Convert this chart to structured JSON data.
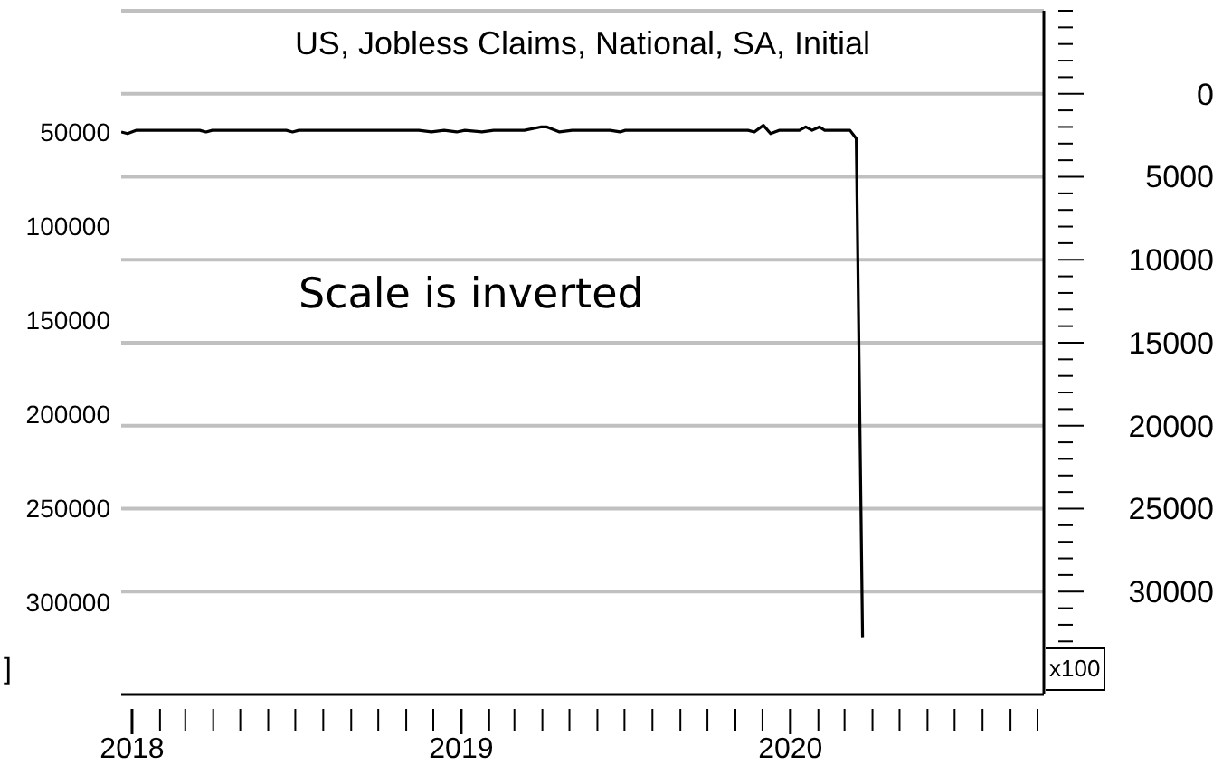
{
  "chart_data": {
    "type": "line",
    "title": "US, Jobless Claims, National, SA, Initial",
    "y2label": "x100",
    "annotations": [
      "Scale is inverted",
      "]"
    ],
    "x": [
      "2017-12-20",
      "2017-12-27",
      "2018-01-06",
      "2018-01-13",
      "2018-03-17",
      "2018-03-24",
      "2018-03-31",
      "2018-06-21",
      "2018-06-28",
      "2018-07-05",
      "2018-11-15",
      "2018-11-29",
      "2018-12-13",
      "2018-12-27",
      "2019-01-05",
      "2019-01-24",
      "2019-02-06",
      "2019-03-12",
      "2019-03-30",
      "2019-04-06",
      "2019-04-20",
      "2019-05-04",
      "2019-06-15",
      "2019-06-26",
      "2019-07-02",
      "2019-11-15",
      "2019-11-22",
      "2019-12-02",
      "2019-12-10",
      "2019-12-20",
      "2020-01-11",
      "2020-01-18",
      "2020-01-25",
      "2020-02-02",
      "2020-02-08",
      "2020-03-07",
      "2020-03-14",
      "2020-03-21"
    ],
    "series": [
      {
        "color": "#000000",
        "axis": "y2",
        "values": [
          2300,
          2400,
          2200,
          2200,
          2200,
          2300,
          2200,
          2200,
          2300,
          2200,
          2200,
          2300,
          2200,
          2300,
          2200,
          2300,
          2200,
          2200,
          2000,
          2000,
          2300,
          2200,
          2200,
          2300,
          2200,
          2200,
          2300,
          1900,
          2400,
          2200,
          2200,
          2000,
          2200,
          2000,
          2200,
          2200,
          2700,
          32800
        ]
      }
    ],
    "xlim": [
      "2017-12-20",
      "2020-10-08"
    ],
    "xticks": [
      {
        "value": "2018",
        "label": "2018"
      },
      {
        "value": "2018-02",
        "label": null
      },
      {
        "value": "2018-03",
        "label": null
      },
      {
        "value": "2018-04",
        "label": null
      },
      {
        "value": "2018-05",
        "label": null
      },
      {
        "value": "2018-06",
        "label": null
      },
      {
        "value": "2018-07",
        "label": null
      },
      {
        "value": "2018-08",
        "label": null
      },
      {
        "value": "2018-09",
        "label": null
      },
      {
        "value": "2018-10",
        "label": null
      },
      {
        "value": "2018-11",
        "label": null
      },
      {
        "value": "2018-12",
        "label": null
      },
      {
        "value": "2019",
        "label": "2019"
      },
      {
        "value": "2019-02",
        "label": null
      },
      {
        "value": "2019-03",
        "label": null
      },
      {
        "value": "2019-04",
        "label": null
      },
      {
        "value": "2019-05",
        "label": null
      },
      {
        "value": "2019-06",
        "label": null
      },
      {
        "value": "2019-07",
        "label": null
      },
      {
        "value": "2019-08",
        "label": null
      },
      {
        "value": "2019-09",
        "label": null
      },
      {
        "value": "2019-10",
        "label": null
      },
      {
        "value": "2019-11",
        "label": null
      },
      {
        "value": "2019-12",
        "label": null
      },
      {
        "value": "2020",
        "label": "2020"
      },
      {
        "value": "2020-02",
        "label": null
      },
      {
        "value": "2020-03",
        "label": null
      },
      {
        "value": "2020-04",
        "label": null
      },
      {
        "value": "2020-05",
        "label": null
      },
      {
        "value": "2020-06",
        "label": null
      },
      {
        "value": "2020-07",
        "label": null
      },
      {
        "value": "2020-08",
        "label": null
      },
      {
        "value": "2020-09",
        "label": null
      },
      {
        "value": "2020-10",
        "label": null
      }
    ],
    "ylim": [
      349000,
      -14400
    ],
    "yticks": [
      50000,
      100000,
      150000,
      200000,
      250000,
      300000
    ],
    "y2lim": [
      36200,
      -5000
    ],
    "y2ticks": [
      {
        "value": -5000,
        "label": null
      },
      {
        "value": -4000,
        "label": null
      },
      {
        "value": -3000,
        "label": null
      },
      {
        "value": -2000,
        "label": null
      },
      {
        "value": -1000,
        "label": null
      },
      0,
      {
        "value": 1000,
        "label": null
      },
      {
        "value": 2000,
        "label": null
      },
      {
        "value": 3000,
        "label": null
      },
      {
        "value": 4000,
        "label": null
      },
      5000,
      {
        "value": 6000,
        "label": null
      },
      {
        "value": 7000,
        "label": null
      },
      {
        "value": 8000,
        "label": null
      },
      {
        "value": 9000,
        "label": null
      },
      10000,
      {
        "value": 11000,
        "label": null
      },
      {
        "value": 12000,
        "label": null
      },
      {
        "value": 13000,
        "label": null
      },
      {
        "value": 14000,
        "label": null
      },
      15000,
      {
        "value": 16000,
        "label": null
      },
      {
        "value": 17000,
        "label": null
      },
      {
        "value": 18000,
        "label": null
      },
      {
        "value": 19000,
        "label": null
      },
      20000,
      {
        "value": 21000,
        "label": null
      },
      {
        "value": 22000,
        "label": null
      },
      {
        "value": 23000,
        "label": null
      },
      {
        "value": 24000,
        "label": null
      },
      25000,
      {
        "value": 26000,
        "label": null
      },
      {
        "value": 27000,
        "label": null
      },
      {
        "value": 28000,
        "label": null
      },
      {
        "value": 29000,
        "label": null
      },
      30000,
      {
        "value": 31000,
        "label": null
      },
      {
        "value": 32000,
        "label": null
      },
      {
        "value": 33000,
        "label": null
      },
      {
        "value": 34000,
        "label": null
      }
    ],
    "grid": "y",
    "line_style": "solid",
    "marker": "none",
    "legend": false
  }
}
